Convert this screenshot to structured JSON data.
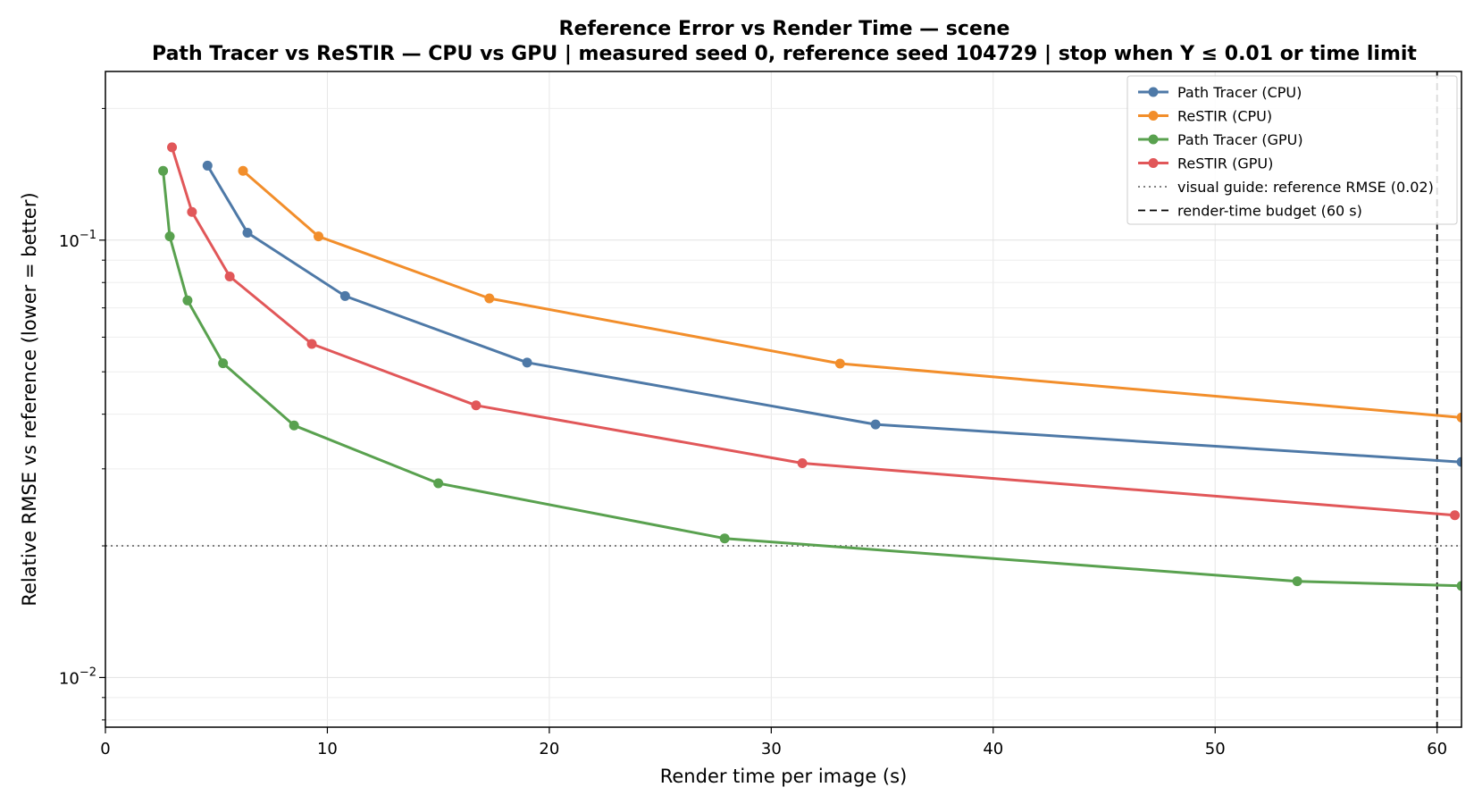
{
  "chart_data": {
    "type": "line",
    "title": "Reference Error vs Render Time — scene",
    "subtitle": "Path Tracer vs ReSTIR — CPU vs GPU  |  measured seed 0, reference seed 104729  |  stop when Y ≤ 0.01 or time limit",
    "xlabel": "Render time per image  (s)",
    "ylabel": "Relative RMSE vs reference  (lower = better)",
    "xlim": [
      0,
      61.1
    ],
    "ylim": [
      0.0077,
      0.243
    ],
    "yscale": "log",
    "grid": true,
    "legend_position": "top-right",
    "x_ticks": [
      {
        "value": 0,
        "label": "0"
      },
      {
        "value": 10,
        "label": "10"
      },
      {
        "value": 20,
        "label": "20"
      },
      {
        "value": 30,
        "label": "30"
      },
      {
        "value": 40,
        "label": "40"
      },
      {
        "value": 50,
        "label": "50"
      },
      {
        "value": 60,
        "label": "60"
      }
    ],
    "y_ticks": [
      {
        "value": 0.01,
        "base": "10",
        "exp": "−2"
      },
      {
        "value": 0.1,
        "base": "10",
        "exp": "−1"
      }
    ],
    "series": [
      {
        "name": "Path Tracer (CPU)",
        "color": "#4e79a7",
        "x": [
          4.6,
          6.4,
          10.8,
          19.0,
          34.7,
          61.1
        ],
        "y": [
          0.148,
          0.104,
          0.0745,
          0.0525,
          0.0379,
          0.0311
        ]
      },
      {
        "name": "ReSTIR (CPU)",
        "color": "#f28e2b",
        "x": [
          6.2,
          9.6,
          17.3,
          33.1,
          61.1
        ],
        "y": [
          0.144,
          0.102,
          0.0736,
          0.0522,
          0.0393
        ]
      },
      {
        "name": "Path Tracer (GPU)",
        "color": "#59a14f",
        "x": [
          2.6,
          2.9,
          3.7,
          5.3,
          8.5,
          15.0,
          27.9,
          53.7,
          61.1
        ],
        "y": [
          0.144,
          0.102,
          0.0728,
          0.0523,
          0.0377,
          0.0278,
          0.0208,
          0.0166,
          0.0162
        ]
      },
      {
        "name": "ReSTIR (GPU)",
        "color": "#e15759",
        "x": [
          3.0,
          3.9,
          5.6,
          9.3,
          16.7,
          31.4,
          60.8
        ],
        "y": [
          0.163,
          0.116,
          0.0826,
          0.0579,
          0.0419,
          0.0309,
          0.0235
        ]
      }
    ],
    "reference_lines": [
      {
        "name": "visual guide: reference RMSE  (0.02)",
        "axis": "y",
        "value": 0.02,
        "style": "dotted",
        "color": "#808080"
      },
      {
        "name": "render-time budget  (60 s)",
        "axis": "x",
        "value": 60,
        "style": "dashed",
        "color": "#000000"
      }
    ]
  }
}
